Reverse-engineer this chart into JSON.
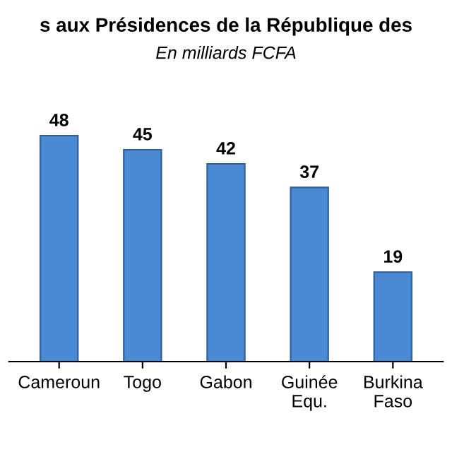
{
  "chart_data": {
    "type": "bar",
    "title": "s aux Présidences de la République des",
    "subtitle": "En milliards FCFA",
    "categories": [
      "Cameroun",
      "Togo",
      "Gabon",
      "Guinée\nEqu.",
      "Burkina\nFaso"
    ],
    "values": [
      48,
      45,
      42,
      37,
      19
    ],
    "color": "#4a8ad4",
    "data_labels": true,
    "grid": false,
    "legend": false
  }
}
